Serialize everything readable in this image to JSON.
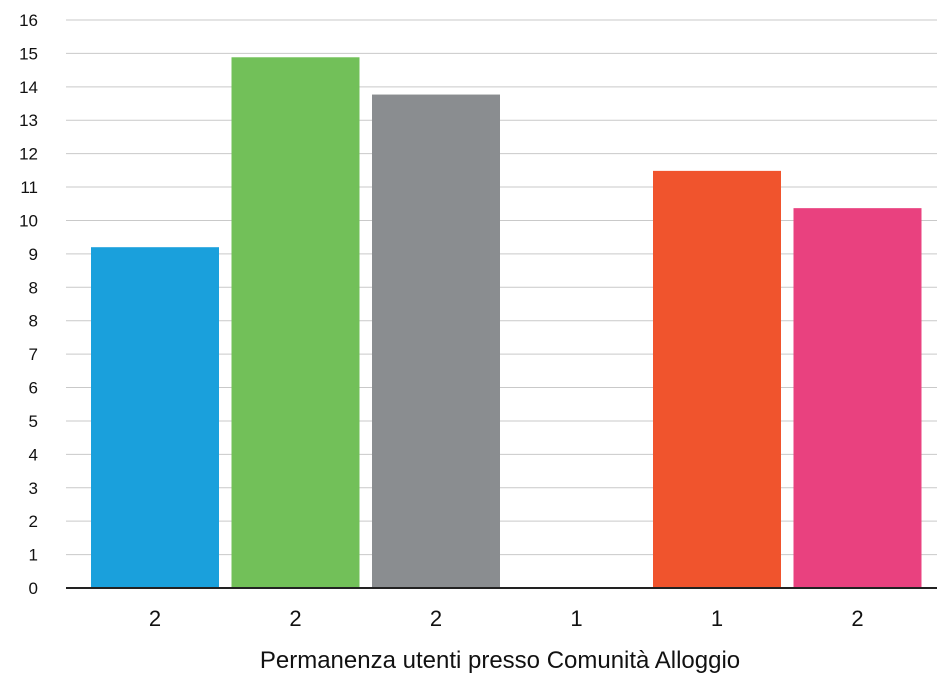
{
  "chart_data": {
    "type": "bar",
    "xlabel": "Permanenza utenti presso Comunità Alloggio",
    "ylabel": "",
    "ylim": [
      0,
      16
    ],
    "y_tick_labels": [
      "0",
      "1",
      "2",
      "3",
      "4",
      "5",
      "6",
      "7",
      "8",
      "8",
      "9",
      "10",
      "11",
      "12",
      "13",
      "14",
      "15",
      "16"
    ],
    "categories": [
      "2",
      "2",
      "2",
      "1",
      "1",
      "2"
    ],
    "values": [
      9.6,
      14.95,
      13.9,
      0,
      11.75,
      10.7
    ],
    "colors": [
      "#1aa0dc",
      "#72c059",
      "#8a8d90",
      "#ffffff",
      "#f0542d",
      "#e9417f"
    ],
    "grid": true,
    "legend": "none"
  }
}
